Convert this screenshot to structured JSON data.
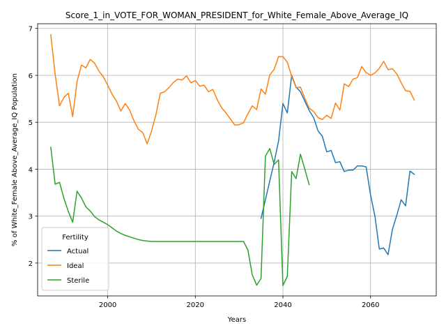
{
  "chart_data": {
    "type": "line",
    "title": "Score_1_in_VOTE_FOR_WOMAN_PRESIDENT_for_White_Female_Above_Average_IQ",
    "xlabel": "Years",
    "ylabel": "% of White_Female Above_Average_IQ Population",
    "xlim": [
      1984,
      2075
    ],
    "ylim": [
      1.3,
      7.1
    ],
    "xticks": [
      2000,
      2020,
      2040,
      2060
    ],
    "yticks": [
      2,
      3,
      4,
      5,
      6,
      7
    ],
    "grid": true,
    "legend": {
      "title": "Fertility",
      "placement": "lower left",
      "entries": [
        "Actual",
        "Ideal",
        "Sterile"
      ]
    },
    "series": [
      {
        "name": "Actual",
        "color": "#1f77b4",
        "x": [
          2035,
          2036,
          2037,
          2038,
          2039,
          2040,
          2041,
          2042,
          2043,
          2044,
          2045,
          2046,
          2047,
          2048,
          2049,
          2050,
          2051,
          2052,
          2053,
          2054,
          2055,
          2056,
          2057,
          2058,
          2059,
          2060,
          2061,
          2062,
          2063,
          2064,
          2065,
          2066,
          2067,
          2068,
          2069,
          2070
        ],
        "y": [
          2.95,
          3.35,
          3.75,
          4.15,
          4.6,
          5.4,
          5.2,
          6.0,
          5.75,
          5.65,
          5.45,
          5.25,
          5.1,
          4.82,
          4.7,
          4.37,
          4.4,
          4.14,
          4.16,
          3.95,
          3.98,
          3.98,
          4.07,
          4.07,
          4.05,
          3.45,
          3.0,
          2.3,
          2.32,
          2.18,
          2.72,
          3.02,
          3.35,
          3.22,
          3.96,
          3.89
        ]
      },
      {
        "name": "Ideal",
        "color": "#ff7f0e",
        "x": [
          1987,
          1988,
          1989,
          1990,
          1991,
          1992,
          1993,
          1994,
          1995,
          1996,
          1997,
          1998,
          1999,
          2000,
          2001,
          2002,
          2003,
          2004,
          2005,
          2006,
          2007,
          2008,
          2009,
          2010,
          2011,
          2012,
          2013,
          2014,
          2015,
          2016,
          2017,
          2018,
          2019,
          2020,
          2021,
          2022,
          2023,
          2024,
          2025,
          2026,
          2027,
          2028,
          2029,
          2030,
          2031,
          2032,
          2033,
          2034,
          2035,
          2036,
          2037,
          2038,
          2039,
          2040,
          2041,
          2042,
          2043,
          2044,
          2045,
          2046,
          2047,
          2048,
          2049,
          2050,
          2051,
          2052,
          2053,
          2054,
          2055,
          2056,
          2057,
          2058,
          2059,
          2060,
          2061,
          2062,
          2063,
          2064,
          2065,
          2066,
          2067,
          2068,
          2069,
          2070
        ],
        "y": [
          6.87,
          6.02,
          5.35,
          5.53,
          5.62,
          5.12,
          5.87,
          6.22,
          6.16,
          6.34,
          6.26,
          6.09,
          5.97,
          5.79,
          5.6,
          5.45,
          5.24,
          5.4,
          5.26,
          5.03,
          4.85,
          4.78,
          4.54,
          4.81,
          5.16,
          5.62,
          5.65,
          5.74,
          5.85,
          5.92,
          5.9,
          5.99,
          5.84,
          5.89,
          5.77,
          5.79,
          5.65,
          5.7,
          5.48,
          5.31,
          5.2,
          5.07,
          4.94,
          4.95,
          4.99,
          5.18,
          5.35,
          5.27,
          5.71,
          5.6,
          6.01,
          6.13,
          6.4,
          6.4,
          6.28,
          5.98,
          5.74,
          5.75,
          5.51,
          5.3,
          5.23,
          5.1,
          5.06,
          5.15,
          5.08,
          5.41,
          5.26,
          5.82,
          5.76,
          5.92,
          5.95,
          6.19,
          6.06,
          6.0,
          6.05,
          6.15,
          6.3,
          6.12,
          6.14,
          6.03,
          5.84,
          5.67,
          5.66,
          5.47
        ]
      },
      {
        "name": "Sterile",
        "color": "#2ca02c",
        "x": [
          1987,
          1988,
          1989,
          1990,
          1991,
          1992,
          1993,
          1994,
          1995,
          1996,
          1997,
          1998,
          1999,
          2000,
          2001,
          2002,
          2003,
          2004,
          2005,
          2006,
          2007,
          2008,
          2009,
          2010,
          2015,
          2020,
          2025,
          2030,
          2031,
          2032,
          2033,
          2034,
          2035,
          2036,
          2037,
          2038,
          2039,
          2040,
          2041,
          2042,
          2043,
          2044,
          2045,
          2046
        ],
        "y": [
          4.47,
          3.68,
          3.72,
          3.38,
          3.1,
          2.87,
          3.53,
          3.39,
          3.2,
          3.11,
          2.99,
          2.92,
          2.87,
          2.82,
          2.75,
          2.68,
          2.63,
          2.59,
          2.56,
          2.53,
          2.5,
          2.48,
          2.47,
          2.46,
          2.46,
          2.46,
          2.46,
          2.46,
          2.46,
          2.28,
          1.75,
          1.53,
          1.67,
          4.28,
          4.44,
          4.1,
          4.2,
          1.52,
          1.72,
          3.95,
          3.8,
          4.32,
          4.0,
          3.67
        ]
      }
    ]
  }
}
